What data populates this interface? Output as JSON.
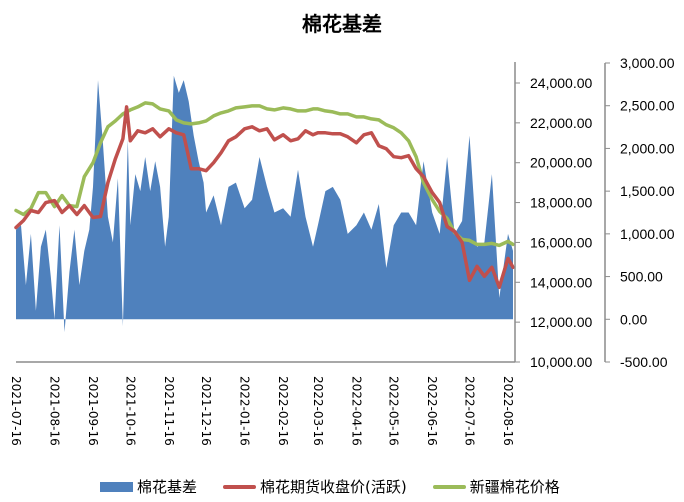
{
  "chart_data": {
    "type": "area+line",
    "title": "棉花基差",
    "xlabel": "",
    "y_left": {
      "label": "",
      "ylim": [
        10000,
        24000
      ],
      "ticks": [
        "24,000.00",
        "22,000.00",
        "20,000.00",
        "18,000.00",
        "16,000.00",
        "14,000.00",
        "12,000.00",
        "10,000.00"
      ]
    },
    "y_right": {
      "label": "",
      "ylim": [
        -500,
        3000
      ],
      "ticks": [
        "3,000.00",
        "2,500.00",
        "2,000.00",
        "1,500.00",
        "1,000.00",
        "500.00",
        "0.00",
        "-500.00"
      ]
    },
    "x_ticks": [
      "2021-07-16",
      "2021-08-16",
      "2021-09-16",
      "2021-10-16",
      "2021-11-16",
      "2021-12-16",
      "2022-01-16",
      "2022-02-16",
      "2022-03-16",
      "2022-04-16",
      "2022-05-16",
      "2022-06-16",
      "2022-07-16",
      "2022-08-16"
    ],
    "grid": false,
    "legend_position": "bottom",
    "series": [
      {
        "name": "棉花基差",
        "type": "area",
        "axis": "right",
        "color": "#4f81bd",
        "x": [
          "2021-07-16",
          "2021-07-20",
          "2021-07-24",
          "2021-07-28",
          "2021-08-01",
          "2021-08-05",
          "2021-08-09",
          "2021-08-13",
          "2021-08-16",
          "2021-08-20",
          "2021-08-24",
          "2021-08-28",
          "2021-09-01",
          "2021-09-05",
          "2021-09-09",
          "2021-09-13",
          "2021-09-16",
          "2021-09-20",
          "2021-09-24",
          "2021-09-28",
          "2021-10-02",
          "2021-10-06",
          "2021-10-10",
          "2021-10-14",
          "2021-10-16",
          "2021-10-20",
          "2021-10-24",
          "2021-10-28",
          "2021-11-01",
          "2021-11-05",
          "2021-11-09",
          "2021-11-13",
          "2021-11-16",
          "2021-11-20",
          "2021-11-24",
          "2021-11-28",
          "2021-12-02",
          "2021-12-06",
          "2021-12-10",
          "2021-12-14",
          "2021-12-16",
          "2021-12-22",
          "2021-12-28",
          "2022-01-03",
          "2022-01-09",
          "2022-01-16",
          "2022-01-22",
          "2022-01-28",
          "2022-02-03",
          "2022-02-09",
          "2022-02-16",
          "2022-02-22",
          "2022-02-28",
          "2022-03-06",
          "2022-03-12",
          "2022-03-16",
          "2022-03-22",
          "2022-03-28",
          "2022-04-03",
          "2022-04-09",
          "2022-04-16",
          "2022-04-22",
          "2022-04-28",
          "2022-05-04",
          "2022-05-10",
          "2022-05-16",
          "2022-05-22",
          "2022-05-28",
          "2022-06-03",
          "2022-06-09",
          "2022-06-16",
          "2022-06-22",
          "2022-06-28",
          "2022-07-04",
          "2022-07-10",
          "2022-07-16",
          "2022-07-22",
          "2022-07-28",
          "2022-08-03",
          "2022-08-09",
          "2022-08-16",
          "2022-08-20"
        ],
        "values": [
          1050,
          1100,
          400,
          1000,
          100,
          850,
          1050,
          500,
          0,
          1100,
          -150,
          550,
          1050,
          400,
          800,
          1050,
          1550,
          2800,
          2050,
          1200,
          900,
          1650,
          -80,
          2100,
          1100,
          1700,
          1500,
          1900,
          1500,
          1850,
          1550,
          850,
          1200,
          2850,
          2650,
          2800,
          2550,
          2150,
          1850,
          1600,
          1250,
          1450,
          1100,
          1550,
          1600,
          1300,
          1400,
          1900,
          1550,
          1250,
          1300,
          1200,
          1750,
          1200,
          850,
          1100,
          1500,
          1550,
          1400,
          1000,
          1100,
          1250,
          1050,
          1350,
          600,
          1100,
          1250,
          1250,
          1100,
          1850,
          1250,
          1000,
          1900,
          1000,
          1150,
          2150,
          850,
          900,
          1700,
          250,
          1000,
          800
        ]
      },
      {
        "name": "棉花期货收盘价(活跃)",
        "type": "line",
        "axis": "left",
        "color": "#c0504d",
        "x": [
          "2021-07-16",
          "2021-07-22",
          "2021-07-28",
          "2021-08-03",
          "2021-08-09",
          "2021-08-16",
          "2021-08-22",
          "2021-08-28",
          "2021-09-03",
          "2021-09-09",
          "2021-09-16",
          "2021-09-22",
          "2021-09-28",
          "2021-10-04",
          "2021-10-10",
          "2021-10-13",
          "2021-10-16",
          "2021-10-22",
          "2021-10-28",
          "2021-11-03",
          "2021-11-09",
          "2021-11-16",
          "2021-11-22",
          "2021-11-28",
          "2021-12-04",
          "2021-12-10",
          "2021-12-16",
          "2021-12-22",
          "2021-12-28",
          "2022-01-03",
          "2022-01-09",
          "2022-01-16",
          "2022-01-22",
          "2022-01-28",
          "2022-02-03",
          "2022-02-09",
          "2022-02-16",
          "2022-02-22",
          "2022-02-28",
          "2022-03-06",
          "2022-03-12",
          "2022-03-16",
          "2022-03-22",
          "2022-03-28",
          "2022-04-03",
          "2022-04-09",
          "2022-04-16",
          "2022-04-22",
          "2022-04-28",
          "2022-05-04",
          "2022-05-10",
          "2022-05-16",
          "2022-05-22",
          "2022-05-28",
          "2022-06-03",
          "2022-06-09",
          "2022-06-16",
          "2022-06-22",
          "2022-06-28",
          "2022-07-04",
          "2022-07-10",
          "2022-07-16",
          "2022-07-22",
          "2022-07-28",
          "2022-08-03",
          "2022-08-09",
          "2022-08-16",
          "2022-08-20"
        ],
        "values": [
          16750,
          17100,
          17600,
          17500,
          18000,
          18100,
          17500,
          17850,
          17400,
          17850,
          17250,
          17300,
          19000,
          20200,
          21200,
          22800,
          21100,
          21600,
          21500,
          21700,
          21300,
          21700,
          21500,
          21400,
          19700,
          19700,
          19600,
          20000,
          20500,
          21100,
          21300,
          21700,
          21800,
          21600,
          21700,
          21150,
          21400,
          21100,
          21200,
          21600,
          21400,
          21500,
          21500,
          21450,
          21450,
          21300,
          21000,
          21400,
          21500,
          20850,
          20700,
          20300,
          20250,
          20350,
          19700,
          19300,
          18500,
          18000,
          16800,
          16550,
          16000,
          14100,
          14800,
          14300,
          14750,
          13750,
          15200,
          14750
        ]
      },
      {
        "name": "新疆棉花价格",
        "type": "line",
        "axis": "left",
        "color": "#9bbb59",
        "x": [
          "2021-07-16",
          "2021-07-22",
          "2021-07-28",
          "2021-08-03",
          "2021-08-09",
          "2021-08-16",
          "2021-08-22",
          "2021-08-28",
          "2021-09-03",
          "2021-09-09",
          "2021-09-16",
          "2021-09-22",
          "2021-09-28",
          "2021-10-04",
          "2021-10-10",
          "2021-10-16",
          "2021-10-22",
          "2021-10-28",
          "2021-11-03",
          "2021-11-09",
          "2021-11-16",
          "2021-11-22",
          "2021-11-28",
          "2021-12-04",
          "2021-12-10",
          "2021-12-16",
          "2021-12-22",
          "2021-12-28",
          "2022-01-03",
          "2022-01-09",
          "2022-01-16",
          "2022-01-22",
          "2022-01-28",
          "2022-02-03",
          "2022-02-09",
          "2022-02-16",
          "2022-02-22",
          "2022-02-28",
          "2022-03-06",
          "2022-03-12",
          "2022-03-16",
          "2022-03-22",
          "2022-03-28",
          "2022-04-03",
          "2022-04-09",
          "2022-04-16",
          "2022-04-22",
          "2022-04-28",
          "2022-05-04",
          "2022-05-10",
          "2022-05-16",
          "2022-05-22",
          "2022-05-28",
          "2022-06-03",
          "2022-06-09",
          "2022-06-16",
          "2022-06-22",
          "2022-06-28",
          "2022-07-04",
          "2022-07-10",
          "2022-07-16",
          "2022-07-22",
          "2022-07-28",
          "2022-08-03",
          "2022-08-09",
          "2022-08-16",
          "2022-08-20"
        ],
        "values": [
          17600,
          17400,
          17700,
          18500,
          18500,
          17800,
          18350,
          17850,
          17800,
          19300,
          20000,
          21000,
          21800,
          22100,
          22450,
          22650,
          22800,
          23000,
          22950,
          22700,
          22600,
          22150,
          22000,
          21950,
          22000,
          22100,
          22350,
          22500,
          22600,
          22750,
          22800,
          22850,
          22850,
          22700,
          22650,
          22750,
          22700,
          22600,
          22600,
          22700,
          22700,
          22600,
          22550,
          22450,
          22450,
          22300,
          22300,
          22200,
          22150,
          21900,
          21750,
          21500,
          21100,
          20300,
          19000,
          18150,
          17550,
          17200,
          16500,
          16150,
          16100,
          15900,
          15900,
          15950,
          15850,
          16050,
          15900
        ]
      }
    ]
  },
  "legend": {
    "items": [
      {
        "label": "棉花基差",
        "color": "#4f81bd",
        "kind": "area"
      },
      {
        "label": "棉花期货收盘价(活跃)",
        "color": "#c0504d",
        "kind": "line"
      },
      {
        "label": "新疆棉花价格",
        "color": "#9bbb59",
        "kind": "line"
      }
    ]
  }
}
